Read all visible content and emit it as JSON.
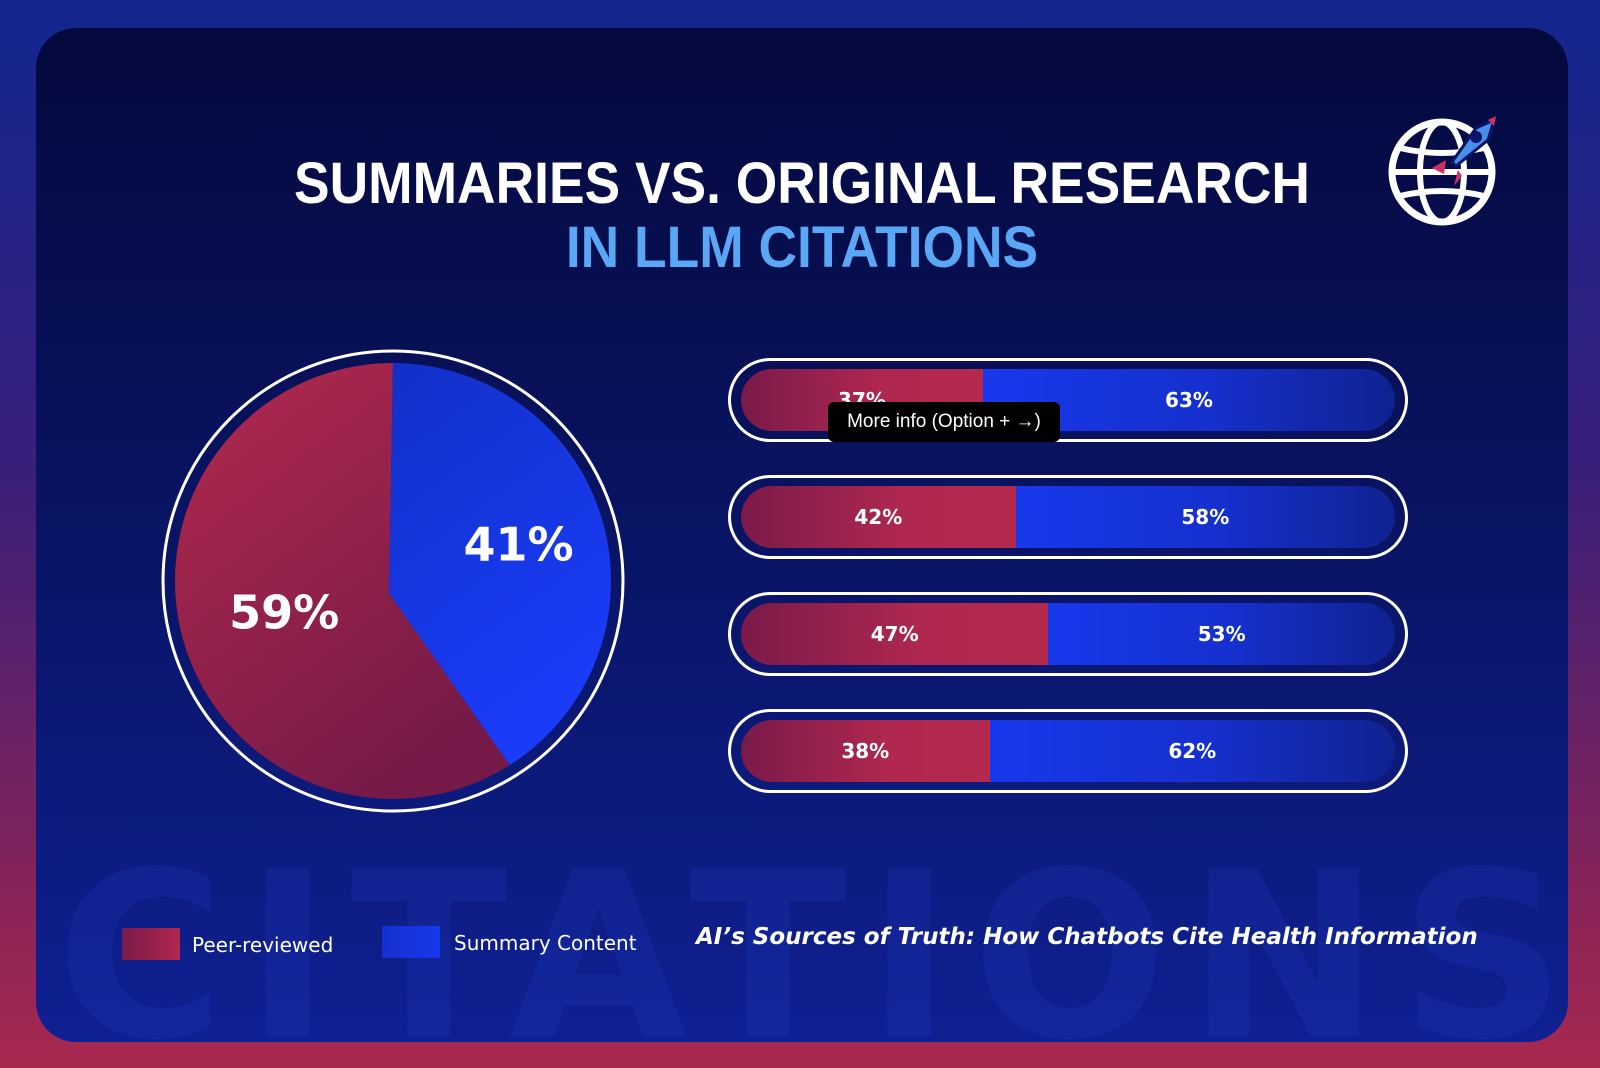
{
  "title_line1": "SUMMARIES VS. ORIGINAL RESEARCH",
  "title_line2": "IN LLM CITATIONS",
  "watermark": "CITATIONS",
  "tooltip": "More info (Option + →)",
  "footer_title": "AI’s Sources of Truth: How Chatbots Cite Health Information",
  "logo_icon": "globe-rocket-icon",
  "colors": {
    "peer_reviewed": "#b0284f",
    "summary": "#1838ec",
    "title_accent": "#5aa8f5"
  },
  "legend": [
    {
      "label": "Peer-reviewed",
      "color": "#b0284f"
    },
    {
      "label": "Summary Content",
      "color": "#1838ec"
    }
  ],
  "chart_data": [
    {
      "type": "pie",
      "slices": [
        {
          "name": "Peer-reviewed",
          "value": 59,
          "label": "59%"
        },
        {
          "name": "Summary Content",
          "value": 41,
          "label": "41%"
        }
      ]
    },
    {
      "type": "bar",
      "orientation": "horizontal-stacked",
      "series": [
        {
          "name": "Peer-reviewed",
          "values": [
            37,
            42,
            47,
            38
          ],
          "labels": [
            "37%",
            "42%",
            "47%",
            "38%"
          ]
        },
        {
          "name": "Summary Content",
          "values": [
            63,
            58,
            53,
            62
          ],
          "labels": [
            "63%",
            "58%",
            "53%",
            "62%"
          ]
        }
      ]
    }
  ]
}
